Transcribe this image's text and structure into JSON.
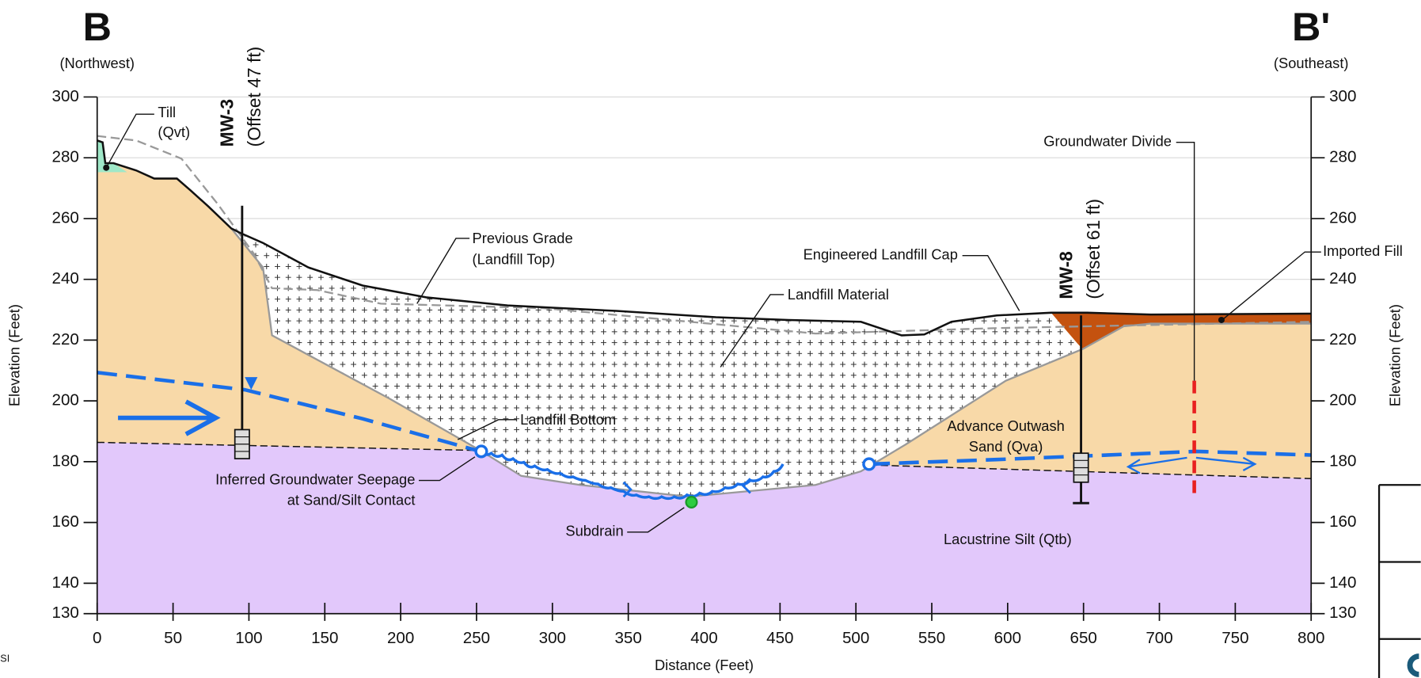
{
  "section": {
    "start_label": "B",
    "start_direction": "(Northwest)",
    "end_label": "B'",
    "end_direction": "(Southeast)"
  },
  "x_axis": {
    "label": "Distance (Feet)",
    "lim": [
      0,
      800
    ],
    "ticks": [
      0,
      50,
      100,
      150,
      200,
      250,
      300,
      350,
      400,
      450,
      500,
      550,
      600,
      650,
      700,
      750,
      800
    ]
  },
  "y_axis": {
    "label": "Elevation (Feet)",
    "lim": [
      130,
      300
    ],
    "ticks": [
      130,
      140,
      160,
      180,
      200,
      220,
      240,
      260,
      280,
      300
    ]
  },
  "wells": [
    {
      "name": "MW-3",
      "offset": "(Offset 47 ft)"
    },
    {
      "name": "MW-8",
      "offset": "(Offset 61 ft)"
    }
  ],
  "annotations": {
    "till": [
      "Till",
      "(Qvt)"
    ],
    "previous_grade": [
      "Previous Grade",
      "(Landfill Top)"
    ],
    "landfill_material": "Landfill Material",
    "engineered_cap": "Engineered Landfill Cap",
    "groundwater_divide": "Groundwater Divide",
    "imported_fill": "Imported Fill",
    "landfill_bottom": "Landfill Bottom",
    "advance_outwash": [
      "Advance Outwash",
      "Sand (Qva)"
    ],
    "seepage": [
      "Inferred Groundwater Seepage",
      "at Sand/Silt Contact"
    ],
    "subdrain": "Subdrain",
    "lacustrine_silt": "Lacustrine Silt (Qtb)"
  },
  "corner_text": "SI"
}
